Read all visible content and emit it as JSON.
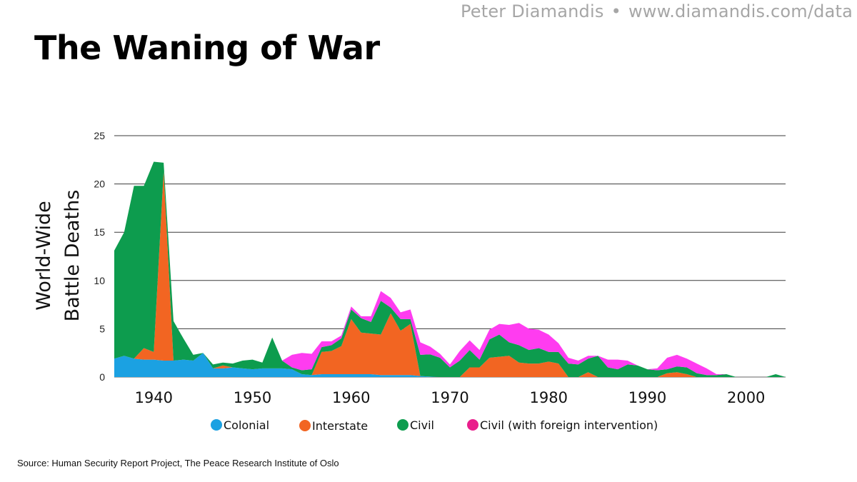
{
  "header": {
    "author": "Peter Diamandis",
    "separator": "•",
    "url": "www.diamandis.com/data"
  },
  "title": "The Waning of War",
  "source": "Source: Human Security Report Project, The Peace Research Institute of Oslo",
  "chart_data": {
    "type": "area",
    "stacked": true,
    "xlim": [
      1936,
      2004
    ],
    "ylim": [
      0,
      25
    ],
    "ylabel_lines": [
      "World-Wide",
      "Battle Deaths"
    ],
    "xlabel": "",
    "y_ticks": [
      0,
      5,
      10,
      15,
      20,
      25
    ],
    "x_ticks": [
      1940,
      1950,
      1960,
      1970,
      1980,
      1990,
      2000
    ],
    "grid": true,
    "legend_position": "bottom",
    "x": [
      1936,
      1937,
      1938,
      1939,
      1940,
      1941,
      1942,
      1943,
      1944,
      1945,
      1946,
      1947,
      1948,
      1949,
      1950,
      1951,
      1952,
      1953,
      1954,
      1955,
      1956,
      1957,
      1958,
      1959,
      1960,
      1961,
      1962,
      1963,
      1964,
      1965,
      1966,
      1967,
      1968,
      1969,
      1970,
      1971,
      1972,
      1973,
      1974,
      1975,
      1976,
      1977,
      1978,
      1979,
      1980,
      1981,
      1982,
      1983,
      1984,
      1985,
      1986,
      1987,
      1988,
      1989,
      1990,
      1991,
      1992,
      1993,
      1994,
      1995,
      1996,
      1997,
      1998,
      1999,
      2000,
      2001,
      2002,
      2003,
      2004
    ],
    "series": [
      {
        "name": "Colonial",
        "color": "#1ba1e2",
        "values": [
          1.9,
          2.2,
          1.9,
          1.8,
          1.8,
          1.7,
          1.7,
          1.8,
          1.7,
          2.5,
          0.9,
          0.9,
          1.0,
          0.9,
          0.8,
          0.9,
          0.9,
          0.9,
          0.8,
          0.3,
          0.2,
          0.3,
          0.3,
          0.3,
          0.3,
          0.3,
          0.3,
          0.2,
          0.2,
          0.2,
          0.2,
          0.1,
          0.05,
          0,
          0,
          0,
          0,
          0,
          0,
          0,
          0,
          0,
          0,
          0,
          0,
          0,
          0,
          0,
          0,
          0,
          0,
          0,
          0,
          0,
          0,
          0,
          0,
          0,
          0,
          0,
          0,
          0,
          0,
          0,
          0,
          0,
          0,
          0,
          0
        ]
      },
      {
        "name": "Interstate",
        "color": "#f26522",
        "values": [
          0,
          0,
          0,
          1.2,
          0.8,
          19.6,
          0,
          0,
          0,
          0,
          0,
          0.3,
          0,
          0,
          0,
          0,
          0,
          0,
          0,
          0,
          0,
          2.3,
          2.4,
          2.9,
          5.7,
          4.3,
          4.2,
          4.2,
          6.4,
          4.6,
          5.3,
          0,
          0,
          0,
          0,
          0,
          1.0,
          1.0,
          2.0,
          2.1,
          2.2,
          1.5,
          1.4,
          1.4,
          1.6,
          1.4,
          0,
          0,
          0.5,
          0,
          0,
          0,
          0,
          0,
          0,
          0,
          0.4,
          0.5,
          0.3,
          0,
          0,
          0,
          0,
          0,
          0,
          0,
          0,
          0,
          0
        ]
      },
      {
        "name": "Civil",
        "color": "#0d9c4e",
        "values": [
          11.2,
          12.8,
          17.9,
          16.8,
          19.7,
          0.9,
          4.1,
          2.2,
          0.6,
          0,
          0.4,
          0.3,
          0.4,
          0.8,
          1.0,
          0.6,
          3.2,
          0.8,
          0.2,
          0.4,
          0.6,
          0.5,
          0.6,
          0.8,
          1.0,
          1.5,
          1.2,
          3.5,
          0.6,
          1.2,
          0.5,
          2.2,
          2.3,
          2.0,
          1.0,
          1.7,
          1.8,
          0.8,
          1.9,
          2.3,
          1.4,
          1.8,
          1.4,
          1.6,
          1.0,
          1.2,
          1.4,
          1.3,
          1.4,
          2.2,
          1.0,
          0.8,
          1.3,
          1.2,
          0.8,
          0.7,
          0.4,
          0.6,
          0.7,
          0.4,
          0.2,
          0.2,
          0.3,
          0.0,
          0.0,
          0.0,
          0.0,
          0.3,
          0.0
        ]
      },
      {
        "name": "Civil (with foreign intervention)",
        "color": "#ff3cf0",
        "values": [
          0,
          0,
          0,
          0,
          0,
          0,
          0,
          0,
          0,
          0,
          0,
          0,
          0,
          0,
          0,
          0,
          0,
          0,
          1.3,
          1.8,
          1.6,
          0.6,
          0.4,
          0.3,
          0.3,
          0.2,
          0.6,
          1.0,
          1.0,
          0.7,
          1.0,
          1.3,
          0.8,
          0.4,
          0.3,
          1.0,
          1.0,
          1.0,
          1.0,
          1.1,
          1.8,
          2.3,
          2.2,
          1.9,
          1.8,
          0.9,
          0.6,
          0.4,
          0.3,
          0.0,
          0.8,
          1.0,
          0.4,
          0.0,
          0.0,
          0.2,
          1.2,
          1.2,
          0.9,
          1.0,
          0.7,
          0.1,
          0.0,
          0.0,
          0.0,
          0.0,
          0.0,
          0.0,
          0.0
        ]
      }
    ]
  }
}
